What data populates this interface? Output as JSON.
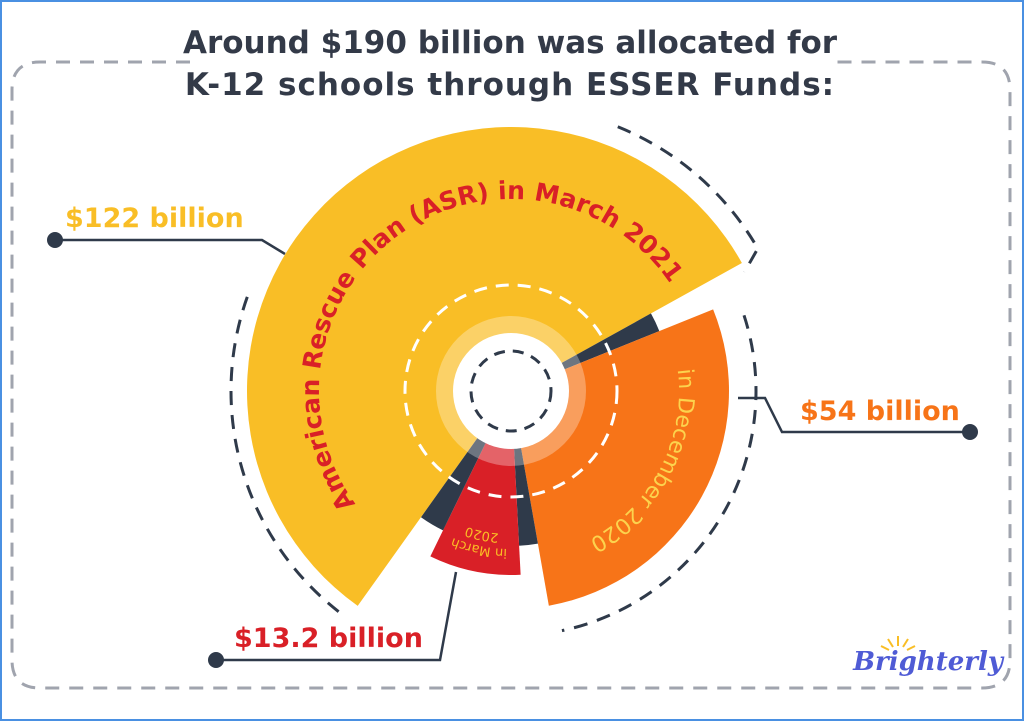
{
  "chart_data": {
    "type": "pie",
    "title": [
      "Around $190 billion was allocated for",
      "K-12 schools through ESSER Funds:"
    ],
    "total_label": "$190 billion",
    "slices": [
      {
        "name": "American Rescue Plan (ASR) in March 2021",
        "value": 122,
        "value_label": "$122 billion",
        "color": "#f9be26",
        "text_color": "#d92027"
      },
      {
        "name": "in December 2020",
        "value": 54,
        "value_label": "$54 billion",
        "color": "#f77418",
        "text_color": "#fcd34d"
      },
      {
        "name": "in March 2020",
        "lines": [
          "in March",
          "2020"
        ],
        "value": 13.2,
        "value_label": "$13.2 billion",
        "color": "#d92027",
        "text_color": "#fbbf24"
      }
    ],
    "label_colors": [
      "#f9be26",
      "#f77418",
      "#d92027"
    ],
    "separator_color": "#2f3a4a",
    "legend": "none"
  },
  "brand": {
    "logo_text": "Brighterly",
    "color": "#4f5bd5",
    "sun_color": "#f9be26"
  }
}
